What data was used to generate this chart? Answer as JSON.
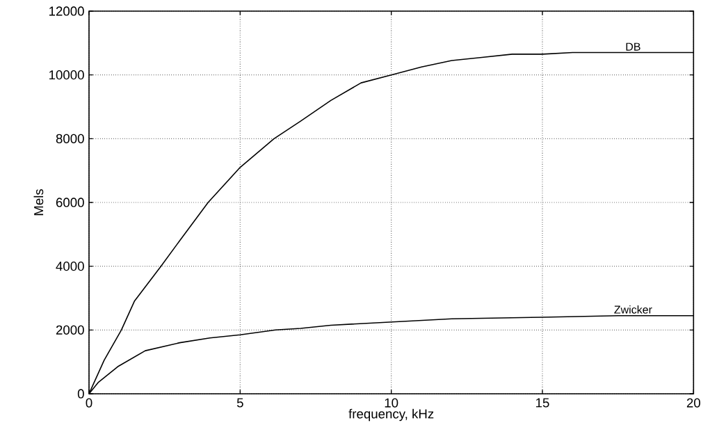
{
  "chart_data": {
    "type": "line",
    "xlabel": "frequency, kHz",
    "ylabel": "Mels",
    "xlim": [
      0,
      20
    ],
    "ylim": [
      0,
      12000
    ],
    "xticks": [
      0,
      5,
      10,
      15,
      20
    ],
    "yticks": [
      0,
      2000,
      4000,
      6000,
      8000,
      10000,
      12000
    ],
    "grid": true,
    "legend": false,
    "marker": "none",
    "line_style": "solid",
    "series": [
      {
        "name": "DB",
        "color": "#000000",
        "x": [
          0,
          0.5,
          1.07,
          1.5,
          2.38,
          3,
          3.94,
          5,
          6.12,
          7,
          8,
          9,
          10,
          11,
          12,
          13,
          14,
          15,
          16,
          20
        ],
        "values": [
          0,
          1050,
          2000,
          2900,
          4000,
          4800,
          6000,
          7100,
          8000,
          8550,
          9200,
          9750,
          10000,
          10250,
          10450,
          10550,
          10650,
          10650,
          10700,
          10700
        ]
      },
      {
        "name": "Zwicker",
        "color": "#000000",
        "x": [
          0,
          0.3,
          0.95,
          1.86,
          3,
          4,
          5,
          6.17,
          7,
          8,
          10,
          12,
          15,
          17.5,
          20
        ],
        "values": [
          0,
          350,
          850,
          1350,
          1600,
          1750,
          1850,
          2000,
          2050,
          2150,
          2250,
          2350,
          2400,
          2450,
          2450
        ]
      }
    ]
  }
}
